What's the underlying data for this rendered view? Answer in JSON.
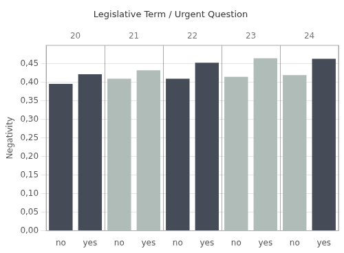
{
  "chart_data": {
    "type": "bar",
    "title": "Legislative Term / Urgent Question",
    "ylabel": "Negativity",
    "categories": [
      "no",
      "yes",
      "no",
      "yes",
      "no",
      "yes",
      "no",
      "yes",
      "no",
      "yes"
    ],
    "groups": [
      "20",
      "21",
      "22",
      "23",
      "24"
    ],
    "values": [
      0.396,
      0.422,
      0.41,
      0.433,
      0.41,
      0.453,
      0.415,
      0.465,
      0.42,
      0.464
    ],
    "colors": [
      "#454c57",
      "#454c57",
      "#b0bcb8",
      "#b0bcb8",
      "#454c57",
      "#454c57",
      "#b0bcb8",
      "#b0bcb8",
      "#b0bcb8",
      "#454c57"
    ],
    "ylim": [
      0,
      0.5
    ],
    "yticks": [
      {
        "value": 0.0,
        "label": "0,00"
      },
      {
        "value": 0.05,
        "label": "0,05"
      },
      {
        "value": 0.1,
        "label": "0,10"
      },
      {
        "value": 0.15,
        "label": "0,15"
      },
      {
        "value": 0.2,
        "label": "0,20"
      },
      {
        "value": 0.25,
        "label": "0,25"
      },
      {
        "value": 0.3,
        "label": "0,30"
      },
      {
        "value": 0.35,
        "label": "0,35"
      },
      {
        "value": 0.4,
        "label": "0,40"
      },
      {
        "value": 0.45,
        "label": "0,45"
      }
    ],
    "grid": true
  }
}
